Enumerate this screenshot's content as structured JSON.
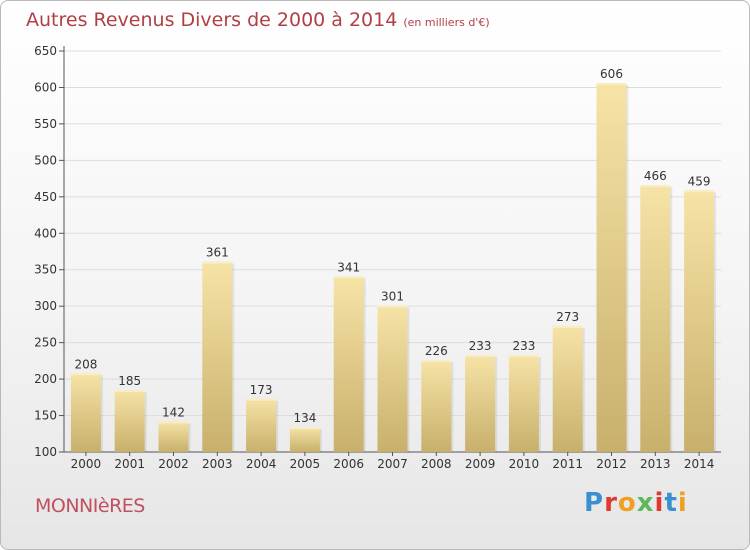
{
  "header": {
    "title": "Autres Revenus Divers de 2000 à 2014",
    "unit": "(en milliers d'€)"
  },
  "footer": {
    "commune": "MONNIèRES",
    "brand": "Proxiti",
    "brand_colors": [
      "#3a8fd0",
      "#e03a2f",
      "#f0a020",
      "#5cb85c",
      "#e03a2f",
      "#3a8fd0",
      "#f0a020"
    ]
  },
  "colors": {
    "title": "#b04045",
    "bar_light": "#f6e3a6",
    "bar_dark": "#c8b06c",
    "grid": "#dddddd"
  },
  "chart_data": {
    "type": "bar",
    "title": "Autres Revenus Divers de 2000 à 2014",
    "xlabel": "",
    "ylabel": "",
    "ylim": [
      100,
      650
    ],
    "yticks": [
      100,
      150,
      200,
      250,
      300,
      350,
      400,
      450,
      500,
      550,
      600,
      650
    ],
    "grid": true,
    "categories": [
      "2000",
      "2001",
      "2002",
      "2003",
      "2004",
      "2005",
      "2006",
      "2007",
      "2008",
      "2009",
      "2010",
      "2011",
      "2012",
      "2013",
      "2014"
    ],
    "values": [
      208,
      185,
      142,
      361,
      173,
      134,
      341,
      301,
      226,
      233,
      233,
      273,
      606,
      466,
      459
    ]
  }
}
